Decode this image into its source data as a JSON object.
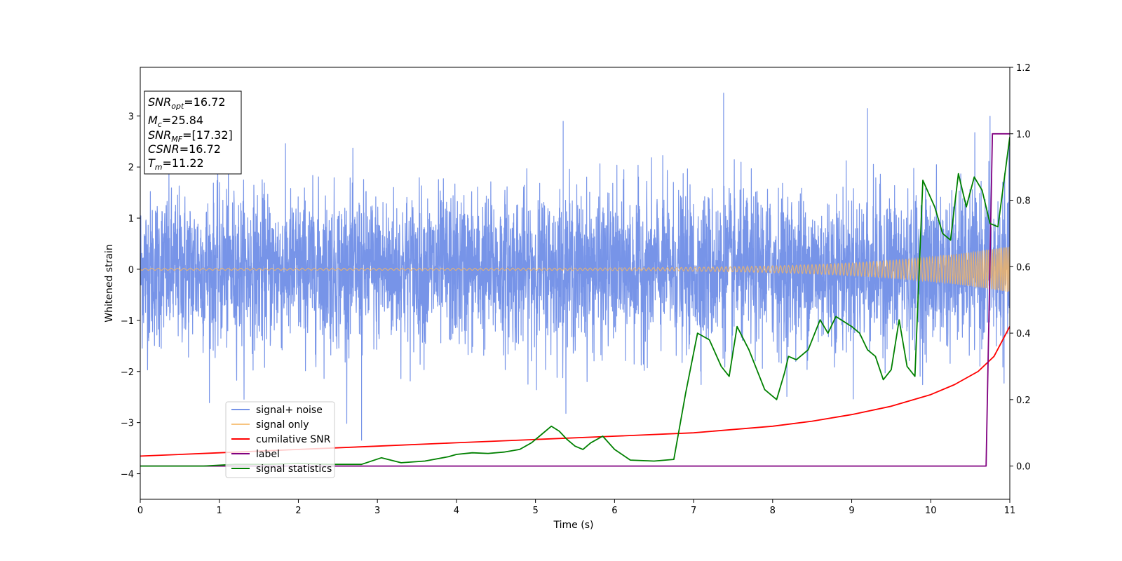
{
  "chart_data": {
    "type": "line",
    "xlabel": "Time (s)",
    "ylabel": "Whitened strain",
    "y2label": "",
    "xlim": [
      0,
      11
    ],
    "ylim": [
      -4.5,
      3.95
    ],
    "y2lim": [
      -0.1,
      1.2
    ],
    "xticks": [
      0,
      1,
      2,
      3,
      4,
      5,
      6,
      7,
      8,
      9,
      10,
      11
    ],
    "yticks": [
      -4,
      -3,
      -2,
      -1,
      0,
      1,
      2,
      3
    ],
    "y2ticks": [
      0.0,
      0.2,
      0.4,
      0.6,
      0.8,
      1.0,
      1.2
    ],
    "xtick_labels": [
      "0",
      "1",
      "2",
      "3",
      "4",
      "5",
      "6",
      "7",
      "8",
      "9",
      "10",
      "11"
    ],
    "ytick_labels": [
      "−4",
      "−3",
      "−2",
      "−1",
      "0",
      "1",
      "2",
      "3"
    ],
    "y2tick_labels": [
      "0.0",
      "0.2",
      "0.4",
      "0.6",
      "0.8",
      "1.0",
      "1.2"
    ],
    "grid": false,
    "legend_position": "lower-left",
    "info_box": {
      "snr_opt_sub": "opt",
      "snr_opt_val": "=16.72",
      "mc_sub": "c",
      "mc_val": "=25.84",
      "snr_mf_sub": "MF",
      "snr_mf_val": "=[17.32]",
      "csnr_val": "=16.72",
      "tm_sub": "m",
      "tm_val": "=11.22"
    },
    "series": [
      {
        "name": "signal+ noise",
        "color": "#7794e8",
        "axis": "left",
        "description_stats": {
          "sigma": 0.75,
          "max_peak": 3.45,
          "min_peak": -3.35
        }
      },
      {
        "name": "signal only",
        "color": "#f5b560",
        "axis": "left",
        "chirp": {
          "amp_start": 0.02,
          "amp_end": 0.45,
          "t_end": 11.22
        }
      },
      {
        "name": "cumilative SNR",
        "color": "#ff0000",
        "axis": "right",
        "x": [
          0,
          1,
          2,
          3,
          4,
          5,
          6,
          7,
          8,
          8.5,
          9,
          9.5,
          10,
          10.3,
          10.6,
          10.8,
          11
        ],
        "y": [
          0.03,
          0.04,
          0.05,
          0.06,
          0.07,
          0.08,
          0.09,
          0.1,
          0.12,
          0.135,
          0.155,
          0.18,
          0.215,
          0.245,
          0.285,
          0.33,
          0.42
        ]
      },
      {
        "name": "label",
        "color": "#800080",
        "axis": "right",
        "x": [
          0,
          10.7,
          10.78,
          11
        ],
        "y": [
          0.0,
          0.0,
          1.0,
          1.0
        ]
      },
      {
        "name": "signal statistics",
        "color": "#008000",
        "axis": "right",
        "x": [
          0.0,
          0.4,
          0.8,
          1.2,
          1.6,
          2.0,
          2.4,
          2.8,
          3.05,
          3.3,
          3.6,
          3.9,
          4.0,
          4.2,
          4.4,
          4.6,
          4.8,
          4.95,
          5.05,
          5.2,
          5.3,
          5.4,
          5.5,
          5.6,
          5.7,
          5.85,
          6.0,
          6.2,
          6.5,
          6.75,
          6.9,
          7.05,
          7.2,
          7.35,
          7.45,
          7.55,
          7.7,
          7.9,
          8.05,
          8.15,
          8.2,
          8.3,
          8.45,
          8.6,
          8.7,
          8.8,
          9.0,
          9.1,
          9.2,
          9.3,
          9.4,
          9.5,
          9.6,
          9.7,
          9.8,
          9.9,
          10.05,
          10.15,
          10.25,
          10.35,
          10.45,
          10.55,
          10.65,
          10.75,
          10.85,
          11.0
        ],
        "y": [
          0.0,
          0.0,
          0.0,
          0.005,
          0.005,
          0.008,
          0.005,
          0.005,
          0.025,
          0.01,
          0.015,
          0.028,
          0.035,
          0.04,
          0.038,
          0.042,
          0.05,
          0.07,
          0.09,
          0.12,
          0.105,
          0.08,
          0.06,
          0.05,
          0.07,
          0.09,
          0.05,
          0.018,
          0.015,
          0.02,
          0.22,
          0.4,
          0.38,
          0.3,
          0.27,
          0.42,
          0.35,
          0.23,
          0.2,
          0.28,
          0.33,
          0.32,
          0.35,
          0.44,
          0.4,
          0.45,
          0.42,
          0.4,
          0.35,
          0.33,
          0.26,
          0.29,
          0.44,
          0.3,
          0.27,
          0.86,
          0.78,
          0.7,
          0.68,
          0.88,
          0.78,
          0.87,
          0.83,
          0.73,
          0.72,
          0.99
        ]
      }
    ]
  }
}
